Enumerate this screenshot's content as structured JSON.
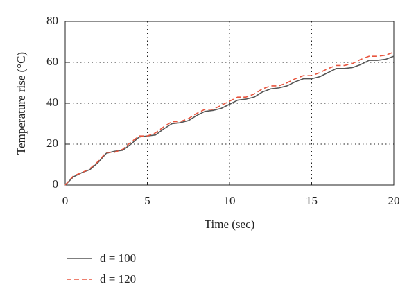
{
  "chart_data": {
    "type": "line",
    "x_label": "Time (sec)",
    "y_label": "Temperature rise (°C)",
    "x": [
      0,
      0.5,
      1,
      1.5,
      2,
      2.5,
      3,
      3.5,
      4,
      4.5,
      5,
      5.5,
      6,
      6.5,
      7,
      7.5,
      8,
      8.5,
      9,
      9.5,
      10,
      10.5,
      11,
      11.5,
      12,
      12.5,
      13,
      13.5,
      14,
      14.5,
      15,
      15.5,
      16,
      16.5,
      17,
      17.5,
      18,
      18.5,
      19,
      19.5,
      20
    ],
    "series": [
      {
        "name": "d = 100",
        "color": "#555555",
        "dash": false,
        "values": [
          0,
          4,
          6,
          7.5,
          11,
          15.5,
          16.5,
          17,
          20,
          23.5,
          24,
          24.5,
          27.5,
          30,
          30.5,
          31.5,
          34,
          36,
          36.5,
          37.5,
          39.5,
          41.5,
          42,
          43,
          45.5,
          47,
          47.5,
          48.5,
          50.5,
          52,
          52,
          53,
          55,
          57,
          57,
          57.5,
          59,
          61,
          61,
          61.5,
          63
        ]
      },
      {
        "name": "d = 120",
        "color": "#e8553e",
        "dash": true,
        "values": [
          0,
          4.5,
          6,
          8,
          11.5,
          16,
          16,
          17.5,
          21,
          24,
          24,
          25.5,
          28.5,
          31,
          31,
          32.5,
          35,
          37,
          37,
          39,
          41,
          43,
          43,
          44.5,
          47,
          48.5,
          48.5,
          50,
          52,
          53.5,
          53.5,
          55,
          57,
          58.5,
          58.5,
          59.5,
          61.5,
          63,
          63,
          63.5,
          65
        ]
      }
    ],
    "xlim": [
      0,
      20
    ],
    "xticks": [
      0,
      5,
      10,
      15,
      20
    ],
    "ylim": [
      0,
      80
    ],
    "yticks": [
      0,
      20,
      40,
      60,
      80
    ],
    "grid": true,
    "legend": "below"
  }
}
